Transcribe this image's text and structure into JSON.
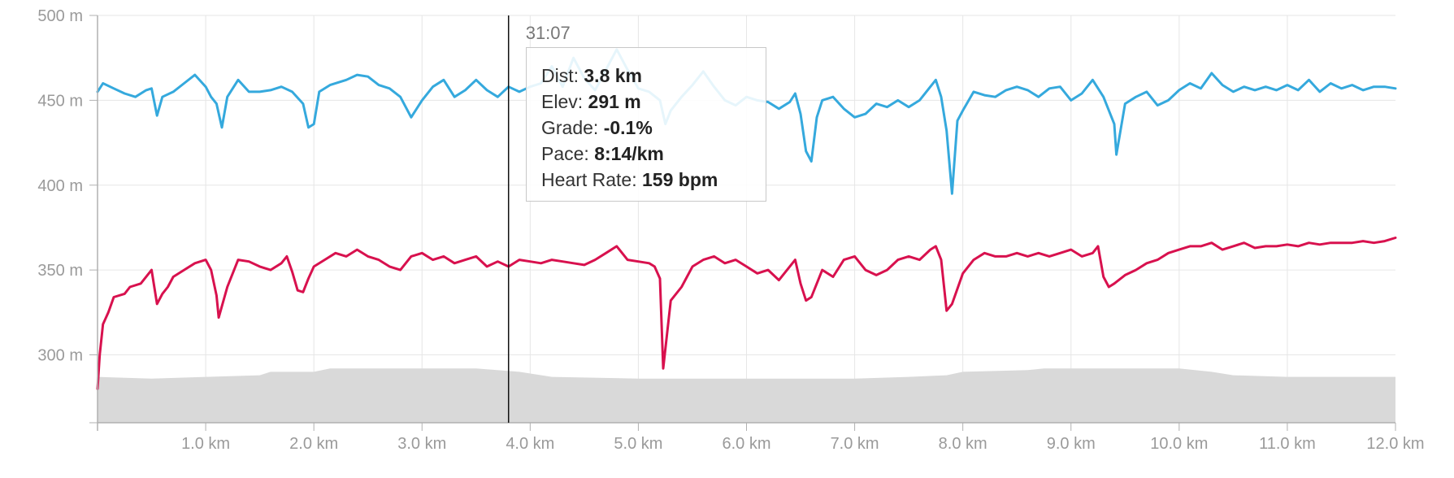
{
  "chart_data": {
    "type": "line",
    "x_unit": "km",
    "x_range": [
      0,
      12.0
    ],
    "x_ticks": [
      "1.0 km",
      "2.0 km",
      "3.0 km",
      "4.0 km",
      "5.0 km",
      "6.0 km",
      "7.0 km",
      "8.0 km",
      "9.0 km",
      "10.0 km",
      "11.0 km",
      "12.0 km"
    ],
    "y_range": [
      260,
      500
    ],
    "y_ticks": [
      "500 m",
      "450 m",
      "400 m",
      "350 m",
      "300 m"
    ],
    "grid": true,
    "colors": {
      "blue_series": "#35a9dd",
      "red_series": "#d8114e",
      "elevation_area": "#d9d9d9",
      "cursor": "#111111"
    },
    "series": [
      {
        "color": "#35a9dd",
        "points": [
          [
            0,
            455
          ],
          [
            0.05,
            460
          ],
          [
            0.15,
            457
          ],
          [
            0.25,
            454
          ],
          [
            0.35,
            452
          ],
          [
            0.45,
            456
          ],
          [
            0.5,
            457
          ],
          [
            0.55,
            441
          ],
          [
            0.6,
            452
          ],
          [
            0.7,
            455
          ],
          [
            0.8,
            460
          ],
          [
            0.9,
            465
          ],
          [
            1.0,
            458
          ],
          [
            1.05,
            452
          ],
          [
            1.1,
            448
          ],
          [
            1.15,
            434
          ],
          [
            1.2,
            452
          ],
          [
            1.3,
            462
          ],
          [
            1.4,
            455
          ],
          [
            1.5,
            455
          ],
          [
            1.6,
            456
          ],
          [
            1.7,
            458
          ],
          [
            1.8,
            455
          ],
          [
            1.9,
            448
          ],
          [
            1.95,
            434
          ],
          [
            2.0,
            436
          ],
          [
            2.05,
            455
          ],
          [
            2.15,
            459
          ],
          [
            2.3,
            462
          ],
          [
            2.4,
            465
          ],
          [
            2.5,
            464
          ],
          [
            2.6,
            459
          ],
          [
            2.7,
            457
          ],
          [
            2.8,
            452
          ],
          [
            2.9,
            440
          ],
          [
            3.0,
            450
          ],
          [
            3.1,
            458
          ],
          [
            3.2,
            462
          ],
          [
            3.3,
            452
          ],
          [
            3.4,
            456
          ],
          [
            3.5,
            462
          ],
          [
            3.6,
            456
          ],
          [
            3.7,
            452
          ],
          [
            3.8,
            458
          ],
          [
            3.9,
            455
          ],
          [
            4.0,
            458
          ],
          [
            4.1,
            460
          ],
          [
            4.2,
            470
          ],
          [
            4.3,
            458
          ],
          [
            4.4,
            475
          ],
          [
            4.5,
            463
          ],
          [
            4.6,
            456
          ],
          [
            4.7,
            468
          ],
          [
            4.8,
            480
          ],
          [
            4.9,
            468
          ],
          [
            5.0,
            457
          ],
          [
            5.1,
            455
          ],
          [
            5.2,
            450
          ],
          [
            5.25,
            436
          ],
          [
            5.3,
            444
          ],
          [
            5.4,
            452
          ],
          [
            5.5,
            459
          ],
          [
            5.6,
            467
          ],
          [
            5.7,
            458
          ],
          [
            5.8,
            450
          ],
          [
            5.9,
            447
          ],
          [
            6.0,
            452
          ],
          [
            6.1,
            450
          ],
          [
            6.2,
            449
          ],
          [
            6.3,
            445
          ],
          [
            6.4,
            449
          ],
          [
            6.45,
            454
          ],
          [
            6.5,
            442
          ],
          [
            6.55,
            420
          ],
          [
            6.6,
            414
          ],
          [
            6.65,
            440
          ],
          [
            6.7,
            450
          ],
          [
            6.8,
            452
          ],
          [
            6.9,
            445
          ],
          [
            7.0,
            440
          ],
          [
            7.1,
            442
          ],
          [
            7.2,
            448
          ],
          [
            7.3,
            446
          ],
          [
            7.4,
            450
          ],
          [
            7.5,
            446
          ],
          [
            7.6,
            450
          ],
          [
            7.7,
            458
          ],
          [
            7.75,
            462
          ],
          [
            7.8,
            452
          ],
          [
            7.85,
            432
          ],
          [
            7.9,
            395
          ],
          [
            7.95,
            438
          ],
          [
            8.0,
            444
          ],
          [
            8.1,
            455
          ],
          [
            8.2,
            453
          ],
          [
            8.3,
            452
          ],
          [
            8.4,
            456
          ],
          [
            8.5,
            458
          ],
          [
            8.6,
            456
          ],
          [
            8.7,
            452
          ],
          [
            8.8,
            457
          ],
          [
            8.9,
            458
          ],
          [
            9.0,
            450
          ],
          [
            9.1,
            454
          ],
          [
            9.2,
            462
          ],
          [
            9.3,
            452
          ],
          [
            9.4,
            436
          ],
          [
            9.42,
            418
          ],
          [
            9.5,
            448
          ],
          [
            9.6,
            452
          ],
          [
            9.7,
            455
          ],
          [
            9.8,
            447
          ],
          [
            9.9,
            450
          ],
          [
            10.0,
            456
          ],
          [
            10.1,
            460
          ],
          [
            10.2,
            457
          ],
          [
            10.3,
            466
          ],
          [
            10.4,
            459
          ],
          [
            10.5,
            455
          ],
          [
            10.6,
            458
          ],
          [
            10.7,
            456
          ],
          [
            10.8,
            458
          ],
          [
            10.9,
            456
          ],
          [
            11.0,
            459
          ],
          [
            11.1,
            456
          ],
          [
            11.2,
            462
          ],
          [
            11.3,
            455
          ],
          [
            11.4,
            460
          ],
          [
            11.5,
            457
          ],
          [
            11.6,
            459
          ],
          [
            11.7,
            456
          ],
          [
            11.8,
            458
          ],
          [
            11.9,
            458
          ],
          [
            12.0,
            457
          ]
        ]
      },
      {
        "color": "#d8114e",
        "points": [
          [
            0,
            280
          ],
          [
            0.02,
            300
          ],
          [
            0.05,
            318
          ],
          [
            0.1,
            325
          ],
          [
            0.15,
            334
          ],
          [
            0.25,
            336
          ],
          [
            0.3,
            340
          ],
          [
            0.4,
            342
          ],
          [
            0.5,
            350
          ],
          [
            0.55,
            330
          ],
          [
            0.6,
            336
          ],
          [
            0.65,
            340
          ],
          [
            0.7,
            346
          ],
          [
            0.8,
            350
          ],
          [
            0.9,
            354
          ],
          [
            1.0,
            356
          ],
          [
            1.05,
            350
          ],
          [
            1.1,
            335
          ],
          [
            1.12,
            322
          ],
          [
            1.2,
            340
          ],
          [
            1.3,
            356
          ],
          [
            1.4,
            355
          ],
          [
            1.5,
            352
          ],
          [
            1.6,
            350
          ],
          [
            1.7,
            354
          ],
          [
            1.75,
            358
          ],
          [
            1.8,
            349
          ],
          [
            1.85,
            338
          ],
          [
            1.9,
            337
          ],
          [
            1.95,
            345
          ],
          [
            2.0,
            352
          ],
          [
            2.1,
            356
          ],
          [
            2.2,
            360
          ],
          [
            2.3,
            358
          ],
          [
            2.4,
            362
          ],
          [
            2.5,
            358
          ],
          [
            2.6,
            356
          ],
          [
            2.7,
            352
          ],
          [
            2.8,
            350
          ],
          [
            2.9,
            358
          ],
          [
            3.0,
            360
          ],
          [
            3.1,
            356
          ],
          [
            3.2,
            358
          ],
          [
            3.3,
            354
          ],
          [
            3.4,
            356
          ],
          [
            3.5,
            358
          ],
          [
            3.6,
            352
          ],
          [
            3.7,
            355
          ],
          [
            3.8,
            352
          ],
          [
            3.9,
            356
          ],
          [
            4.0,
            355
          ],
          [
            4.1,
            354
          ],
          [
            4.2,
            356
          ],
          [
            4.3,
            355
          ],
          [
            4.4,
            354
          ],
          [
            4.5,
            353
          ],
          [
            4.6,
            356
          ],
          [
            4.7,
            360
          ],
          [
            4.8,
            364
          ],
          [
            4.9,
            356
          ],
          [
            5.0,
            355
          ],
          [
            5.1,
            354
          ],
          [
            5.15,
            352
          ],
          [
            5.2,
            345
          ],
          [
            5.23,
            292
          ],
          [
            5.3,
            332
          ],
          [
            5.4,
            340
          ],
          [
            5.5,
            352
          ],
          [
            5.6,
            356
          ],
          [
            5.7,
            358
          ],
          [
            5.8,
            354
          ],
          [
            5.9,
            356
          ],
          [
            6.0,
            352
          ],
          [
            6.1,
            348
          ],
          [
            6.2,
            350
          ],
          [
            6.3,
            344
          ],
          [
            6.4,
            352
          ],
          [
            6.45,
            356
          ],
          [
            6.5,
            342
          ],
          [
            6.55,
            332
          ],
          [
            6.6,
            334
          ],
          [
            6.7,
            350
          ],
          [
            6.8,
            346
          ],
          [
            6.9,
            356
          ],
          [
            7.0,
            358
          ],
          [
            7.1,
            350
          ],
          [
            7.2,
            347
          ],
          [
            7.3,
            350
          ],
          [
            7.4,
            356
          ],
          [
            7.5,
            358
          ],
          [
            7.6,
            356
          ],
          [
            7.7,
            362
          ],
          [
            7.75,
            364
          ],
          [
            7.8,
            356
          ],
          [
            7.85,
            326
          ],
          [
            7.9,
            330
          ],
          [
            8.0,
            348
          ],
          [
            8.1,
            356
          ],
          [
            8.2,
            360
          ],
          [
            8.3,
            358
          ],
          [
            8.4,
            358
          ],
          [
            8.5,
            360
          ],
          [
            8.6,
            358
          ],
          [
            8.7,
            360
          ],
          [
            8.8,
            358
          ],
          [
            8.9,
            360
          ],
          [
            9.0,
            362
          ],
          [
            9.1,
            358
          ],
          [
            9.2,
            360
          ],
          [
            9.25,
            364
          ],
          [
            9.3,
            346
          ],
          [
            9.35,
            340
          ],
          [
            9.4,
            342
          ],
          [
            9.5,
            347
          ],
          [
            9.6,
            350
          ],
          [
            9.7,
            354
          ],
          [
            9.8,
            356
          ],
          [
            9.9,
            360
          ],
          [
            10.0,
            362
          ],
          [
            10.1,
            364
          ],
          [
            10.2,
            364
          ],
          [
            10.3,
            366
          ],
          [
            10.4,
            362
          ],
          [
            10.5,
            364
          ],
          [
            10.6,
            366
          ],
          [
            10.7,
            363
          ],
          [
            10.8,
            364
          ],
          [
            10.9,
            364
          ],
          [
            11.0,
            365
          ],
          [
            11.1,
            364
          ],
          [
            11.2,
            366
          ],
          [
            11.3,
            365
          ],
          [
            11.4,
            366
          ],
          [
            11.5,
            366
          ],
          [
            11.6,
            366
          ],
          [
            11.7,
            367
          ],
          [
            11.8,
            366
          ],
          [
            11.9,
            367
          ],
          [
            12.0,
            369
          ]
        ]
      },
      {
        "type": "area",
        "color": "#d9d9d9",
        "points": [
          [
            0,
            287
          ],
          [
            0.5,
            286
          ],
          [
            1.0,
            287
          ],
          [
            1.5,
            288
          ],
          [
            1.6,
            290
          ],
          [
            2.0,
            290
          ],
          [
            2.15,
            292
          ],
          [
            3.0,
            292
          ],
          [
            3.5,
            292
          ],
          [
            3.9,
            290
          ],
          [
            4.2,
            287
          ],
          [
            5.0,
            286
          ],
          [
            6.0,
            286
          ],
          [
            7.0,
            286
          ],
          [
            7.5,
            287
          ],
          [
            7.85,
            288
          ],
          [
            8.0,
            290
          ],
          [
            8.6,
            291
          ],
          [
            8.75,
            292
          ],
          [
            9.5,
            292
          ],
          [
            10.0,
            292
          ],
          [
            10.3,
            290
          ],
          [
            10.5,
            288
          ],
          [
            11.0,
            287
          ],
          [
            11.5,
            287
          ],
          [
            12.0,
            287
          ]
        ]
      }
    ],
    "cursor": {
      "x": 3.8
    }
  },
  "cursor_time": "31:07",
  "tooltip": {
    "dist_label": "Dist: ",
    "dist_value": "3.8 km",
    "elev_label": "Elev: ",
    "elev_value": "291 m",
    "grade_label": "Grade: ",
    "grade_value": "-0.1%",
    "pace_label": "Pace: ",
    "pace_value": "8:14/km",
    "hr_label": "Heart Rate: ",
    "hr_value": "159 bpm"
  }
}
